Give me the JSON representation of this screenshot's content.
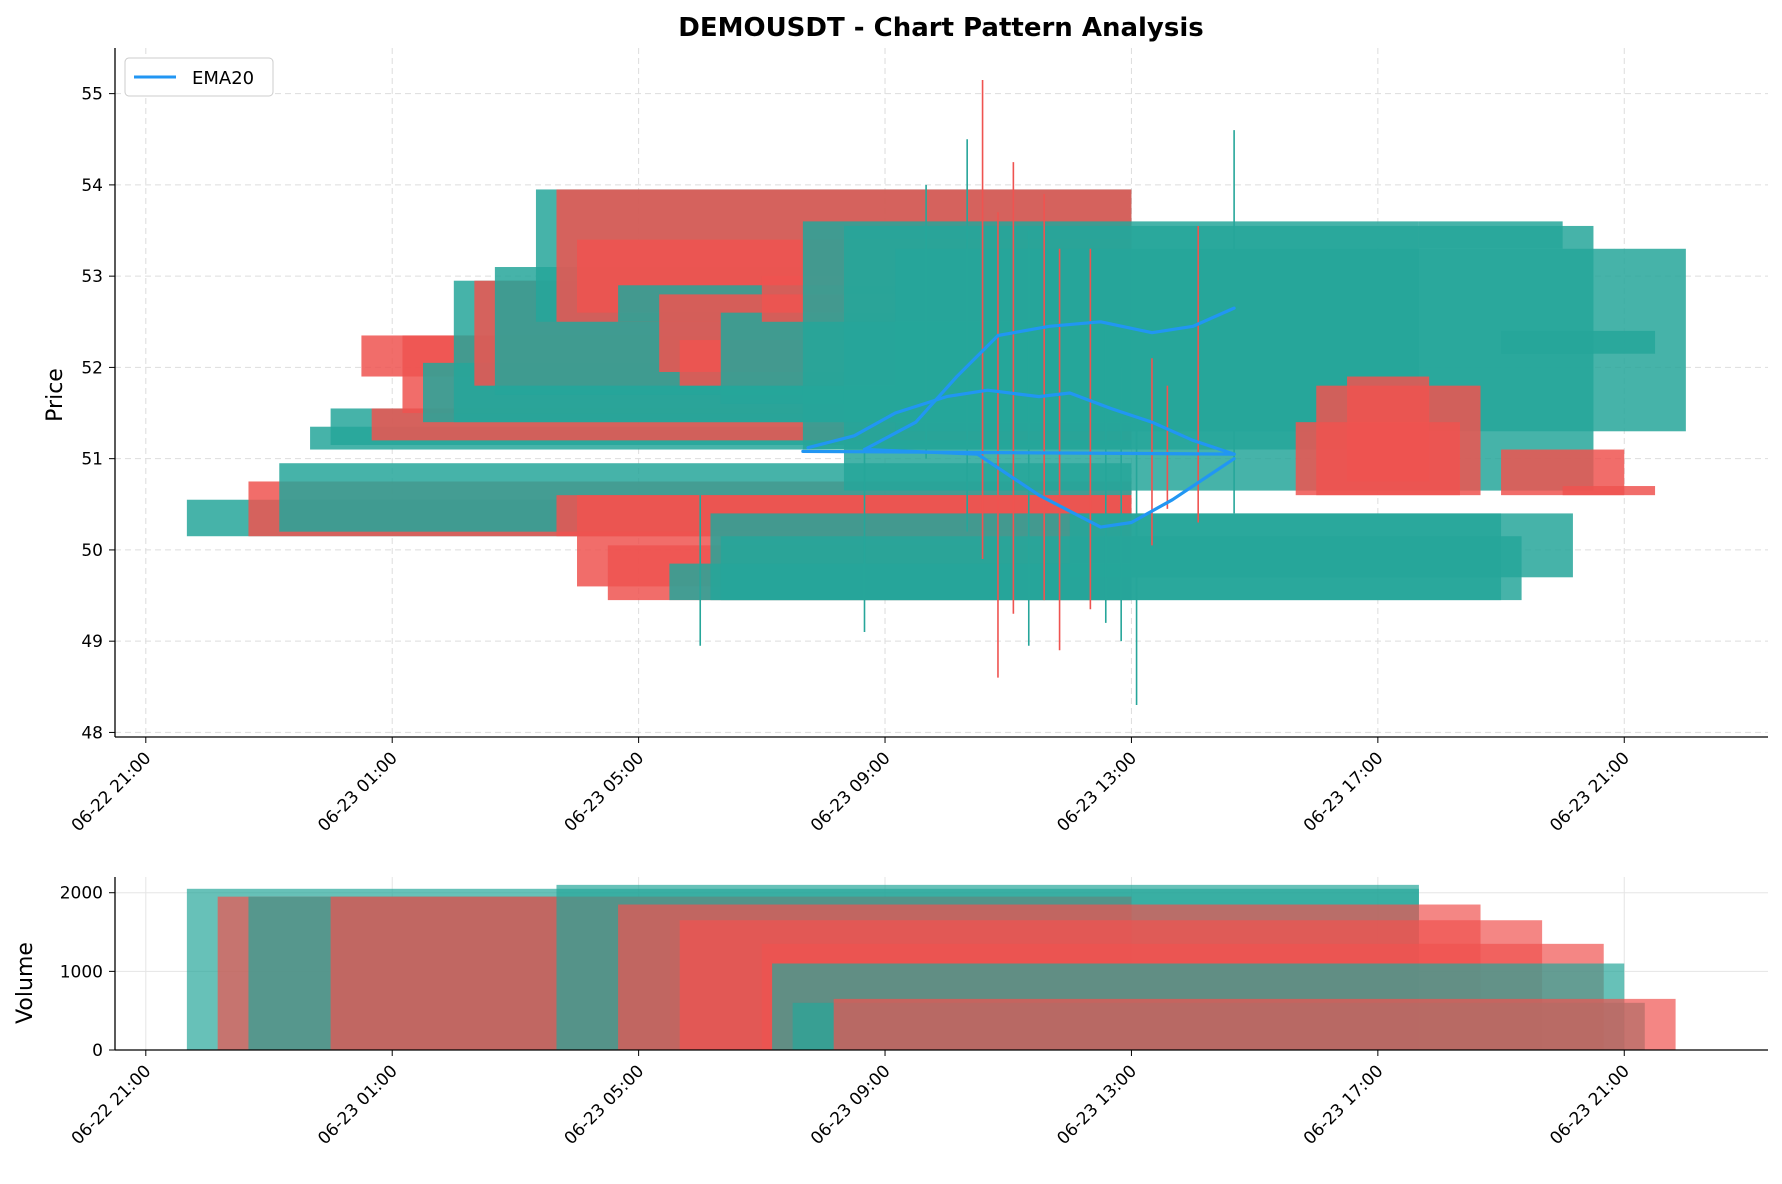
{
  "chart_data": {
    "type": "candlestick",
    "title": "DEMOUSDT - Chart Pattern Analysis",
    "symbol": "DEMOUSDT",
    "colors": {
      "up": "#26a69a",
      "down": "#ef5350",
      "ema": "#2196f3",
      "grid": "#cccccc"
    },
    "price_panel": {
      "ylabel": "Price",
      "ylim": [
        47.95,
        55.5
      ],
      "yticks": [
        "48",
        "49",
        "50",
        "51",
        "52",
        "53",
        "54",
        "55"
      ],
      "grid": true
    },
    "volume_panel": {
      "ylabel": "Volume",
      "ylim": [
        0,
        2200
      ],
      "yticks": [
        "0",
        "1000",
        "2000"
      ],
      "grid": true
    },
    "x_axis": {
      "start": "06-22 20:30",
      "end": "06-23 23:20",
      "ticks": [
        "06-22 21:00",
        "06-23 01:00",
        "06-23 05:00",
        "06-23 09:00",
        "06-23 13:00",
        "06-23 17:00",
        "06-23 21:00"
      ]
    },
    "legend": {
      "placement": "top-left",
      "entries": [
        "EMA20"
      ]
    },
    "bands": [
      {
        "x0": "06-22 21:40",
        "x1": "06-23 13:00",
        "y0": 50.15,
        "y1": 50.55,
        "color": "up"
      },
      {
        "x0": "06-22 22:40",
        "x1": "06-23 13:00",
        "y0": 50.15,
        "y1": 50.75,
        "color": "down"
      },
      {
        "x0": "06-22 23:10",
        "x1": "06-23 13:00",
        "y0": 50.2,
        "y1": 50.95,
        "color": "up"
      },
      {
        "x0": "06-22 23:40",
        "x1": "06-23 13:00",
        "y0": 51.1,
        "y1": 51.35,
        "color": "up"
      },
      {
        "x0": "06-23 00:00",
        "x1": "06-23 13:00",
        "y0": 51.15,
        "y1": 51.55,
        "color": "up"
      },
      {
        "x0": "06-23 00:40",
        "x1": "06-23 13:00",
        "y0": 51.2,
        "y1": 51.55,
        "color": "down"
      },
      {
        "x0": "06-23 00:30",
        "x1": "06-23 13:00",
        "y0": 51.9,
        "y1": 52.35,
        "color": "down"
      },
      {
        "x0": "06-23 01:10",
        "x1": "06-23 13:00",
        "y0": 51.5,
        "y1": 52.35,
        "color": "down"
      },
      {
        "x0": "06-23 01:30",
        "x1": "06-23 13:00",
        "y0": 51.4,
        "y1": 52.05,
        "color": "up"
      },
      {
        "x0": "06-23 02:00",
        "x1": "06-23 13:00",
        "y0": 51.4,
        "y1": 52.95,
        "color": "up"
      },
      {
        "x0": "06-23 02:20",
        "x1": "06-23 13:00",
        "y0": 51.8,
        "y1": 52.95,
        "color": "down"
      },
      {
        "x0": "06-23 02:40",
        "x1": "06-23 13:00",
        "y0": 51.7,
        "y1": 53.1,
        "color": "up"
      },
      {
        "x0": "06-23 03:20",
        "x1": "06-23 13:00",
        "y0": 52.5,
        "y1": 53.95,
        "color": "up"
      },
      {
        "x0": "06-23 03:40",
        "x1": "06-23 13:00",
        "y0": 52.5,
        "y1": 53.95,
        "color": "down"
      },
      {
        "x0": "06-23 04:00",
        "x1": "06-23 13:00",
        "y0": 52.6,
        "y1": 53.4,
        "color": "down"
      },
      {
        "x0": "06-23 04:40",
        "x1": "06-23 13:00",
        "y0": 52.5,
        "y1": 52.9,
        "color": "up"
      },
      {
        "x0": "06-23 05:20",
        "x1": "06-23 13:00",
        "y0": 51.95,
        "y1": 52.8,
        "color": "down"
      },
      {
        "x0": "06-23 05:40",
        "x1": "06-23 13:00",
        "y0": 51.8,
        "y1": 52.3,
        "color": "down"
      },
      {
        "x0": "06-23 06:20",
        "x1": "06-23 13:00",
        "y0": 51.6,
        "y1": 52.6,
        "color": "up"
      },
      {
        "x0": "06-23 07:00",
        "x1": "06-23 13:00",
        "y0": 52.5,
        "y1": 53.0,
        "color": "down"
      },
      {
        "x0": "06-23 07:40",
        "x1": "06-23 17:40",
        "y0": 51.1,
        "y1": 53.6,
        "color": "up"
      },
      {
        "x0": "06-23 08:20",
        "x1": "06-23 20:30",
        "y0": 50.65,
        "y1": 53.55,
        "color": "up"
      },
      {
        "x0": "06-23 09:10",
        "x1": "06-23 22:00",
        "y0": 51.3,
        "y1": 53.3,
        "color": "up"
      },
      {
        "x0": "06-23 03:40",
        "x1": "06-23 13:00",
        "y0": 50.15,
        "y1": 50.6,
        "color": "down"
      },
      {
        "x0": "06-23 04:00",
        "x1": "06-23 13:00",
        "y0": 49.6,
        "y1": 50.6,
        "color": "down"
      },
      {
        "x0": "06-23 04:30",
        "x1": "06-23 13:00",
        "y0": 49.45,
        "y1": 50.05,
        "color": "down"
      },
      {
        "x0": "06-23 05:30",
        "x1": "06-23 13:00",
        "y0": 49.45,
        "y1": 49.85,
        "color": "up"
      },
      {
        "x0": "06-23 06:10",
        "x1": "06-23 19:00",
        "y0": 49.45,
        "y1": 50.4,
        "color": "up"
      },
      {
        "x0": "06-23 06:20",
        "x1": "06-23 19:20",
        "y0": 49.45,
        "y1": 50.15,
        "color": "up"
      },
      {
        "x0": "06-23 12:00",
        "x1": "06-23 20:10",
        "y0": 49.7,
        "y1": 50.4,
        "color": "up"
      },
      {
        "x0": "06-23 15:40",
        "x1": "06-23 18:20",
        "y0": 50.6,
        "y1": 51.4,
        "color": "down"
      },
      {
        "x0": "06-23 16:00",
        "x1": "06-23 18:40",
        "y0": 50.6,
        "y1": 51.8,
        "color": "down"
      },
      {
        "x0": "06-23 16:30",
        "x1": "06-23 17:50",
        "y0": 50.75,
        "y1": 51.9,
        "color": "down"
      },
      {
        "x0": "06-23 19:00",
        "x1": "06-23 21:00",
        "y0": 50.6,
        "y1": 51.1,
        "color": "down"
      },
      {
        "x0": "06-23 20:00",
        "x1": "06-23 21:30",
        "y0": 50.6,
        "y1": 50.7,
        "color": "down"
      },
      {
        "x0": "06-23 17:40",
        "x1": "06-23 20:00",
        "y0": 53.3,
        "y1": 53.6,
        "color": "up"
      },
      {
        "x0": "06-23 19:00",
        "x1": "06-23 21:30",
        "y0": 52.15,
        "y1": 52.4,
        "color": "up"
      }
    ],
    "wicks": [
      {
        "x": "06-23 09:40",
        "low": 51.0,
        "high": 54.0,
        "color": "up"
      },
      {
        "x": "06-23 10:20",
        "low": 50.2,
        "high": 54.5,
        "color": "up"
      },
      {
        "x": "06-23 10:35",
        "low": 49.9,
        "high": 55.15,
        "color": "down"
      },
      {
        "x": "06-23 10:50",
        "low": 48.6,
        "high": 53.7,
        "color": "down"
      },
      {
        "x": "06-23 11:05",
        "low": 49.3,
        "high": 54.25,
        "color": "down"
      },
      {
        "x": "06-23 11:20",
        "low": 48.95,
        "high": 53.5,
        "color": "up"
      },
      {
        "x": "06-23 11:35",
        "low": 49.45,
        "high": 53.9,
        "color": "down"
      },
      {
        "x": "06-23 11:50",
        "low": 48.9,
        "high": 53.3,
        "color": "down"
      },
      {
        "x": "06-23 12:20",
        "low": 49.35,
        "high": 53.3,
        "color": "down"
      },
      {
        "x": "06-23 12:35",
        "low": 49.2,
        "high": 52.5,
        "color": "up"
      },
      {
        "x": "06-23 12:50",
        "low": 49.0,
        "high": 52.0,
        "color": "up"
      },
      {
        "x": "06-23 13:05",
        "low": 48.3,
        "high": 52.4,
        "color": "up"
      },
      {
        "x": "06-23 13:20",
        "low": 50.05,
        "high": 52.1,
        "color": "down"
      },
      {
        "x": "06-23 13:35",
        "low": 50.45,
        "high": 51.8,
        "color": "down"
      },
      {
        "x": "06-23 14:05",
        "low": 50.3,
        "high": 53.55,
        "color": "down"
      },
      {
        "x": "06-23 14:40",
        "low": 50.4,
        "high": 54.6,
        "color": "up"
      },
      {
        "x": "06-23 08:40",
        "low": 49.1,
        "high": 51.2,
        "color": "up"
      },
      {
        "x": "06-23 06:00",
        "low": 48.95,
        "high": 50.6,
        "color": "up"
      }
    ],
    "ema20": [
      {
        "x": "06-23 07:45",
        "y": 51.12
      },
      {
        "x": "06-23 08:30",
        "y": 51.25
      },
      {
        "x": "06-23 09:10",
        "y": 51.5
      },
      {
        "x": "06-23 10:00",
        "y": 51.68
      },
      {
        "x": "06-23 10:40",
        "y": 51.75
      },
      {
        "x": "06-23 11:30",
        "y": 51.68
      },
      {
        "x": "06-23 12:00",
        "y": 51.72
      },
      {
        "x": "06-23 12:40",
        "y": 51.55
      },
      {
        "x": "06-23 13:20",
        "y": 51.4
      },
      {
        "x": "06-23 14:00",
        "y": 51.2
      },
      {
        "x": "06-23 14:40",
        "y": 51.05
      }
    ],
    "ema20_b": [
      {
        "x": "06-23 08:40",
        "y": 51.1
      },
      {
        "x": "06-23 09:30",
        "y": 51.4
      },
      {
        "x": "06-23 10:10",
        "y": 51.9
      },
      {
        "x": "06-23 10:50",
        "y": 52.35
      },
      {
        "x": "06-23 11:40",
        "y": 52.45
      },
      {
        "x": "06-23 12:30",
        "y": 52.5
      },
      {
        "x": "06-23 13:20",
        "y": 52.38
      },
      {
        "x": "06-23 14:00",
        "y": 52.45
      },
      {
        "x": "06-23 14:40",
        "y": 52.65
      }
    ],
    "ema20_c": [
      {
        "x": "06-23 08:40",
        "y": 51.1
      },
      {
        "x": "06-23 10:30",
        "y": 51.05
      },
      {
        "x": "06-23 11:30",
        "y": 50.6
      },
      {
        "x": "06-23 12:30",
        "y": 50.25
      },
      {
        "x": "06-23 13:00",
        "y": 50.3
      },
      {
        "x": "06-23 13:40",
        "y": 50.55
      },
      {
        "x": "06-23 14:40",
        "y": 51.0
      }
    ],
    "ema20_d": [
      {
        "x": "06-23 07:40",
        "y": 51.08
      },
      {
        "x": "06-23 14:40",
        "y": 51.05
      }
    ],
    "volume_bands": [
      {
        "x0": "06-22 21:40",
        "x1": "06-23 17:40",
        "v": 2050,
        "color": "up"
      },
      {
        "x0": "06-22 22:10",
        "x1": "06-23 13:00",
        "v": 1950,
        "color": "down"
      },
      {
        "x0": "06-22 22:40",
        "x1": "06-23 13:00",
        "v": 1950,
        "color": "up"
      },
      {
        "x0": "06-23 00:00",
        "x1": "06-23 13:00",
        "v": 1950,
        "color": "down"
      },
      {
        "x0": "06-23 03:40",
        "x1": "06-23 17:40",
        "v": 2100,
        "color": "up"
      },
      {
        "x0": "06-23 04:40",
        "x1": "06-23 18:40",
        "v": 1850,
        "color": "down"
      },
      {
        "x0": "06-23 05:40",
        "x1": "06-23 19:40",
        "v": 1650,
        "color": "down"
      },
      {
        "x0": "06-23 07:00",
        "x1": "06-23 20:40",
        "v": 1350,
        "color": "down"
      },
      {
        "x0": "06-23 07:10",
        "x1": "06-23 21:00",
        "v": 1100,
        "color": "up"
      },
      {
        "x0": "06-23 07:30",
        "x1": "06-23 21:20",
        "v": 600,
        "color": "up"
      },
      {
        "x0": "06-23 08:10",
        "x1": "06-23 21:50",
        "v": 650,
        "color": "down"
      }
    ]
  }
}
